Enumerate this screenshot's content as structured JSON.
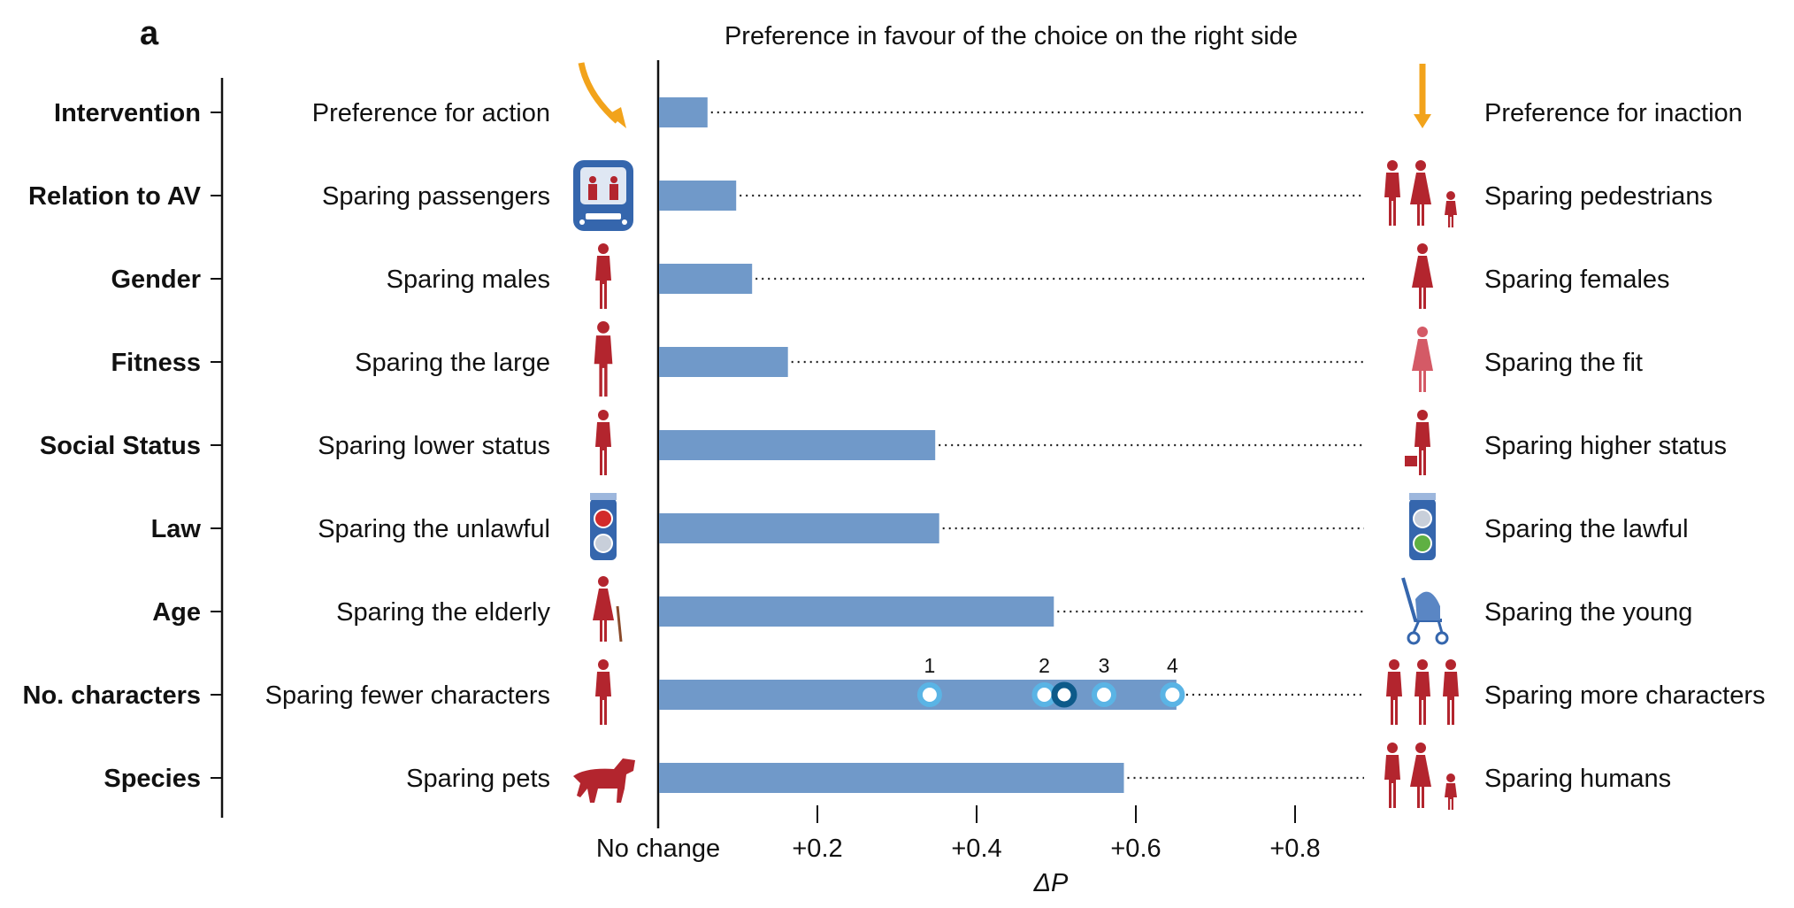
{
  "panel_label": "a",
  "chart_data": {
    "type": "bar",
    "orientation": "horizontal",
    "title": "Preference in favour of the choice on the right side",
    "xlabel": "ΔP",
    "xlim": [
      0,
      0.9
    ],
    "x_ticks": [
      {
        "value": 0,
        "label": "No change"
      },
      {
        "value": 0.2,
        "label": "+0.2"
      },
      {
        "value": 0.4,
        "label": "+0.4"
      },
      {
        "value": 0.6,
        "label": "+0.6"
      },
      {
        "value": 0.8,
        "label": "+0.8"
      }
    ],
    "grid": false,
    "categories": [
      "Intervention",
      "Relation to AV",
      "Gender",
      "Fitness",
      "Social Status",
      "Law",
      "Age",
      "No. characters",
      "Species"
    ],
    "left_labels": [
      "Preference for action",
      "Sparing passengers",
      "Sparing males",
      "Sparing the large",
      "Sparing lower status",
      "Sparing the unlawful",
      "Sparing the elderly",
      "Sparing fewer characters",
      "Sparing pets"
    ],
    "right_labels": [
      "Preference for inaction",
      "Sparing pedestrians",
      "Sparing females",
      "Sparing the fit",
      "Sparing higher status",
      "Sparing the lawful",
      "Sparing the young",
      "Sparing more characters",
      "Sparing humans"
    ],
    "values": [
      0.062,
      0.098,
      0.118,
      0.163,
      0.348,
      0.353,
      0.497,
      0.651,
      0.585
    ],
    "character_difference_points": [
      {
        "label": "1",
        "value": 0.341
      },
      {
        "label": "2",
        "value": 0.485
      },
      {
        "label": "",
        "value": 0.51
      },
      {
        "label": "3",
        "value": 0.56
      },
      {
        "label": "4",
        "value": 0.646
      }
    ],
    "icons_left": [
      "arrow-swerve-icon",
      "car-passengers-icon",
      "male-figure-icon",
      "large-figure-icon",
      "homeless-figure-icon",
      "red-traffic-light-icon",
      "elderly-figure-icon",
      "single-figure-icon",
      "dog-icon"
    ],
    "icons_right": [
      "arrow-straight-icon",
      "pedestrian-group-icon",
      "female-figure-icon",
      "athlete-figure-icon",
      "executive-figure-icon",
      "green-walk-light-icon",
      "stroller-icon",
      "three-figures-icon",
      "human-group-icon"
    ],
    "colors": {
      "bar": "#7099c9",
      "icon_red": "#b3252e",
      "arrow": "#f2a31b",
      "light_blue": "#5ab4e5",
      "dark_blue": "#0d5a8a",
      "car": "#3566ad"
    }
  }
}
